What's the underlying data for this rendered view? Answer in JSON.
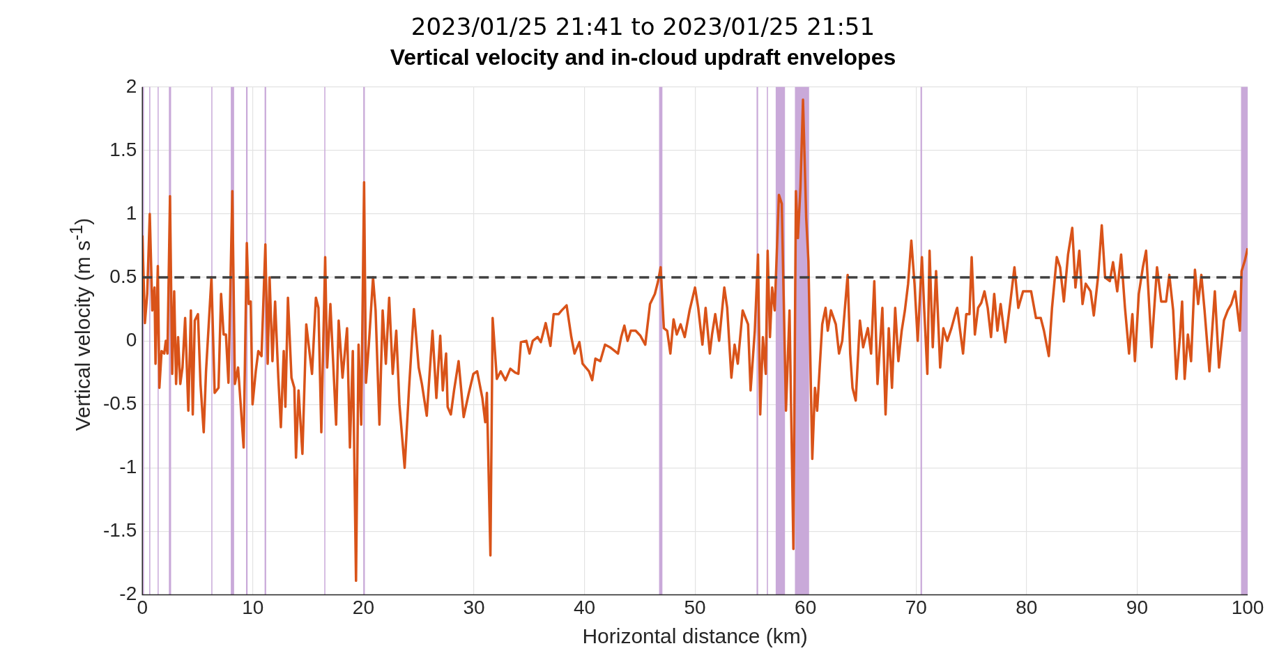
{
  "chart_data": {
    "type": "line",
    "subtitle": "2023/01/25 21:41 to 2023/01/25 21:51",
    "title": "Vertical velocity and in-cloud updraft envelopes",
    "xlabel": "Horizontal distance (km)",
    "ylabel": "Vertical velocity (m s$^{-1}$)",
    "xlim": [
      0,
      100
    ],
    "xticks": [
      0,
      10,
      20,
      30,
      40,
      50,
      60,
      70,
      80,
      90,
      100
    ],
    "ylim": [
      -2,
      2
    ],
    "yticks": [
      -2,
      -1.5,
      -1,
      -0.5,
      0,
      0.5,
      1,
      1.5,
      2
    ],
    "grid": true,
    "marker": "none",
    "x": [
      0,
      0.23,
      0.44,
      0.67,
      0.9,
      1.1,
      1.19,
      1.4,
      1.54,
      1.74,
      1.98,
      2.12,
      2.27,
      2.5,
      2.7,
      2.88,
      3.05,
      3.23,
      3.43,
      3.63,
      3.87,
      4.16,
      4.39,
      4.56,
      4.74,
      5.03,
      5.26,
      5.55,
      5.76,
      6.25,
      6.54,
      6.89,
      7.12,
      7.35,
      7.56,
      7.79,
      8.14,
      8.37,
      8.66,
      8.87,
      9.16,
      9.45,
      9.62,
      9.8,
      9.97,
      10.26,
      10.49,
      10.78,
      11.13,
      11.34,
      11.51,
      11.77,
      12.01,
      12.3,
      12.53,
      12.79,
      12.94,
      13.17,
      13.49,
      13.75,
      13.9,
      14.13,
      14.48,
      14.83,
      15.35,
      15.7,
      15.93,
      16.19,
      16.54,
      16.72,
      17.01,
      17.53,
      17.76,
      18.11,
      18.52,
      18.78,
      19.04,
      19.33,
      19.56,
      19.8,
      20.06,
      20.23,
      20.49,
      20.87,
      21.1,
      21.45,
      21.74,
      22.03,
      22.33,
      22.65,
      22.97,
      23.26,
      23.73,
      24.13,
      24.57,
      25,
      25.29,
      25.73,
      26.25,
      26.6,
      26.95,
      27.18,
      27.48,
      27.62,
      27.91,
      28.2,
      28.61,
      29.07,
      29.51,
      29.95,
      30.29,
      30.76,
      31.02,
      31.17,
      31.49,
      31.69,
      32.07,
      32.42,
      32.85,
      33.29,
      33.73,
      34.02,
      34.25,
      34.74,
      35.03,
      35.32,
      35.76,
      36.05,
      36.49,
      36.92,
      37.21,
      37.65,
      37.94,
      38.38,
      38.81,
      39.1,
      39.54,
      39.83,
      40.41,
      40.7,
      40.99,
      41.43,
      41.86,
      42.3,
      42.74,
      43.03,
      43.32,
      43.61,
      43.9,
      44.19,
      44.63,
      45.06,
      45.5,
      45.93,
      46.37,
      46.66,
      46.89,
      47.18,
      47.48,
      47.77,
      48.06,
      48.35,
      48.7,
      49.07,
      49.51,
      50,
      50.29,
      50.67,
      50.96,
      51.34,
      51.54,
      51.83,
      52.18,
      52.65,
      52.91,
      53.29,
      53.58,
      53.87,
      54.31,
      54.8,
      55.03,
      55.41,
      55.7,
      55.9,
      56.14,
      56.4,
      56.57,
      56.78,
      56.98,
      57.21,
      57.59,
      57.85,
      58.23,
      58.55,
      58.9,
      59.13,
      59.31,
      59.54,
      59.77,
      60.06,
      60.26,
      60.61,
      60.85,
      61.05,
      61.28,
      61.51,
      61.81,
      62.01,
      62.3,
      62.74,
      63.03,
      63.32,
      63.61,
      63.81,
      64.04,
      64.25,
      64.54,
      64.92,
      65.21,
      65.64,
      65.93,
      66.22,
      66.51,
      66.95,
      67.24,
      67.53,
      67.82,
      68.11,
      68.4,
      68.7,
      68.99,
      69.28,
      69.57,
      69.86,
      70.15,
      70.53,
      70.73,
      71.02,
      71.22,
      71.51,
      71.81,
      72.18,
      72.47,
      72.82,
      73.2,
      73.64,
      73.72,
      74.25,
      74.54,
      74.83,
      75.03,
      75.32,
      75.61,
      75.9,
      76.19,
      76.48,
      76.78,
      77.07,
      77.36,
      77.65,
      78.08,
      78.52,
      78.9,
      79.25,
      79.68,
      80.06,
      80.41,
      80.85,
      81.28,
      81.57,
      82.01,
      82.3,
      82.73,
      83.03,
      83.37,
      83.75,
      84.13,
      84.42,
      84.77,
      85.06,
      85.35,
      85.79,
      86.08,
      86.46,
      86.8,
      87.1,
      87.53,
      87.82,
      88.2,
      88.55,
      88.9,
      89.27,
      89.57,
      89.8,
      90.15,
      90.52,
      90.81,
      91.31,
      91.8,
      92.18,
      92.62,
      92.91,
      93.26,
      93.55,
      93.87,
      94.07,
      94.3,
      94.59,
      94.88,
      95.23,
      95.52,
      95.81,
      96.1,
      96.54,
      97.03,
      97.41,
      97.85,
      98.2,
      98.52,
      98.87,
      99.3,
      99.45,
      99.74,
      100
    ],
    "series": [
      {
        "color": "#d95319",
        "values": [
          0.83,
          0.14,
          0.37,
          1.0,
          0.24,
          0.42,
          -0.18,
          0.59,
          -0.37,
          -0.08,
          -0.1,
          0,
          -0.1,
          1.14,
          -0.26,
          0.39,
          -0.34,
          0.03,
          -0.34,
          -0.21,
          0.18,
          -0.55,
          0.24,
          -0.58,
          0.16,
          0.21,
          -0.34,
          -0.72,
          -0.24,
          0.5,
          -0.41,
          -0.37,
          0.37,
          0.05,
          0.05,
          -0.33,
          1.18,
          -0.34,
          -0.21,
          -0.47,
          -0.84,
          0.77,
          0.29,
          0.31,
          -0.5,
          -0.24,
          -0.08,
          -0.12,
          0.76,
          -0.18,
          0.5,
          -0.16,
          0.31,
          -0.29,
          -0.68,
          -0.08,
          -0.52,
          0.34,
          -0.29,
          -0.37,
          -0.92,
          -0.39,
          -0.89,
          0.13,
          -0.26,
          0.34,
          0.26,
          -0.72,
          0.66,
          -0.21,
          0.29,
          -0.66,
          0.16,
          -0.29,
          0.1,
          -0.84,
          -0.08,
          -1.89,
          -0.03,
          -0.66,
          1.25,
          -0.33,
          -0.03,
          0.5,
          0.24,
          -0.66,
          0.24,
          -0.18,
          0.34,
          -0.26,
          0.08,
          -0.5,
          -1.0,
          -0.37,
          0.25,
          -0.21,
          -0.34,
          -0.59,
          0.08,
          -0.45,
          0.04,
          -0.39,
          -0.1,
          -0.52,
          -0.58,
          -0.39,
          -0.16,
          -0.6,
          -0.42,
          -0.26,
          -0.24,
          -0.45,
          -0.64,
          -0.41,
          -1.69,
          0.18,
          -0.3,
          -0.24,
          -0.31,
          -0.22,
          -0.25,
          -0.26,
          -0.01,
          0,
          -0.1,
          0,
          0.03,
          -0.01,
          0.14,
          -0.04,
          0.21,
          0.21,
          0.24,
          0.28,
          0.03,
          -0.1,
          -0.01,
          -0.18,
          -0.24,
          -0.31,
          -0.14,
          -0.16,
          -0.03,
          -0.05,
          -0.08,
          -0.1,
          0.03,
          0.12,
          0,
          0.08,
          0.08,
          0.04,
          -0.03,
          0.29,
          0.37,
          0.47,
          0.58,
          0.1,
          0.08,
          -0.1,
          0.17,
          0.05,
          0.13,
          0.03,
          0.24,
          0.42,
          0.26,
          -0.03,
          0.26,
          -0.1,
          0.05,
          0.21,
          0,
          0.42,
          0.26,
          -0.29,
          -0.03,
          -0.18,
          0.24,
          0.13,
          -0.39,
          0.08,
          0.68,
          -0.58,
          0.03,
          -0.26,
          0.71,
          0.03,
          0.42,
          0.24,
          1.15,
          1.08,
          -0.55,
          0.24,
          -1.64,
          1.18,
          0.81,
          1.21,
          1.9,
          0.97,
          0.63,
          -0.93,
          -0.37,
          -0.55,
          -0.21,
          0.13,
          0.26,
          0.08,
          0.24,
          0.13,
          -0.1,
          0,
          0.31,
          0.52,
          -0.1,
          -0.37,
          -0.47,
          0.16,
          -0.05,
          0.1,
          -0.1,
          0.47,
          -0.34,
          0.26,
          -0.58,
          0.1,
          -0.37,
          0.26,
          -0.16,
          0.08,
          0.24,
          0.45,
          0.79,
          0.45,
          0,
          0.66,
          0.26,
          -0.26,
          0.71,
          -0.05,
          0.55,
          -0.21,
          0.1,
          0,
          0.1,
          0.24,
          0.26,
          -0.1,
          0.21,
          0.21,
          0.66,
          0.05,
          0.26,
          0.3,
          0.39,
          0.26,
          0.03,
          0.37,
          0.08,
          0.29,
          -0.01,
          0.3,
          0.58,
          0.26,
          0.39,
          0.39,
          0.39,
          0.18,
          0.18,
          0.08,
          -0.12,
          0.26,
          0.66,
          0.58,
          0.31,
          0.68,
          0.89,
          0.42,
          0.71,
          0.29,
          0.45,
          0.39,
          0.2,
          0.5,
          0.91,
          0.5,
          0.47,
          0.62,
          0.39,
          0.68,
          0.26,
          -0.1,
          0.21,
          -0.16,
          0.37,
          0.58,
          0.71,
          -0.05,
          0.58,
          0.31,
          0.31,
          0.52,
          0.24,
          -0.3,
          0.03,
          0.31,
          -0.3,
          0.05,
          -0.16,
          0.56,
          0.29,
          0.52,
          0.24,
          -0.24,
          0.39,
          -0.21,
          0.16,
          0.24,
          0.29,
          0.39,
          0.08,
          0.55,
          0.63,
          0.73
        ]
      }
    ],
    "ref_lines": [
      {
        "axis": "y",
        "value": 0.5,
        "color": "#404040",
        "line_style": "dashed"
      }
    ],
    "bands": [
      {
        "axis": "x",
        "from": 0,
        "to": 0.15,
        "color": "#c9a9d9"
      },
      {
        "axis": "x",
        "from": 0.62,
        "to": 0.72,
        "color": "#c9a9d9"
      },
      {
        "axis": "x",
        "from": 1.38,
        "to": 1.46,
        "color": "#c9a9d9"
      },
      {
        "axis": "x",
        "from": 2.4,
        "to": 2.6,
        "color": "#c9a9d9"
      },
      {
        "axis": "x",
        "from": 6.24,
        "to": 6.32,
        "color": "#c9a9d9"
      },
      {
        "axis": "x",
        "from": 8.0,
        "to": 8.3,
        "color": "#c9a9d9"
      },
      {
        "axis": "x",
        "from": 9.38,
        "to": 9.52,
        "color": "#c9a9d9"
      },
      {
        "axis": "x",
        "from": 11.06,
        "to": 11.2,
        "color": "#c9a9d9"
      },
      {
        "axis": "x",
        "from": 16.46,
        "to": 16.54,
        "color": "#c9a9d9"
      },
      {
        "axis": "x",
        "from": 19.99,
        "to": 20.13,
        "color": "#c9a9d9"
      },
      {
        "axis": "x",
        "from": 46.75,
        "to": 47.05,
        "color": "#c9a9d9"
      },
      {
        "axis": "x",
        "from": 55.57,
        "to": 55.71,
        "color": "#c9a9d9"
      },
      {
        "axis": "x",
        "from": 56.5,
        "to": 56.6,
        "color": "#c9a9d9"
      },
      {
        "axis": "x",
        "from": 57.3,
        "to": 58.14,
        "color": "#c9a9d9"
      },
      {
        "axis": "x",
        "from": 59.04,
        "to": 60.32,
        "color": "#c9a9d9"
      },
      {
        "axis": "x",
        "from": 70.4,
        "to": 70.54,
        "color": "#c9a9d9"
      },
      {
        "axis": "x",
        "from": 99.4,
        "to": 100,
        "color": "#c9a9d9"
      }
    ]
  }
}
